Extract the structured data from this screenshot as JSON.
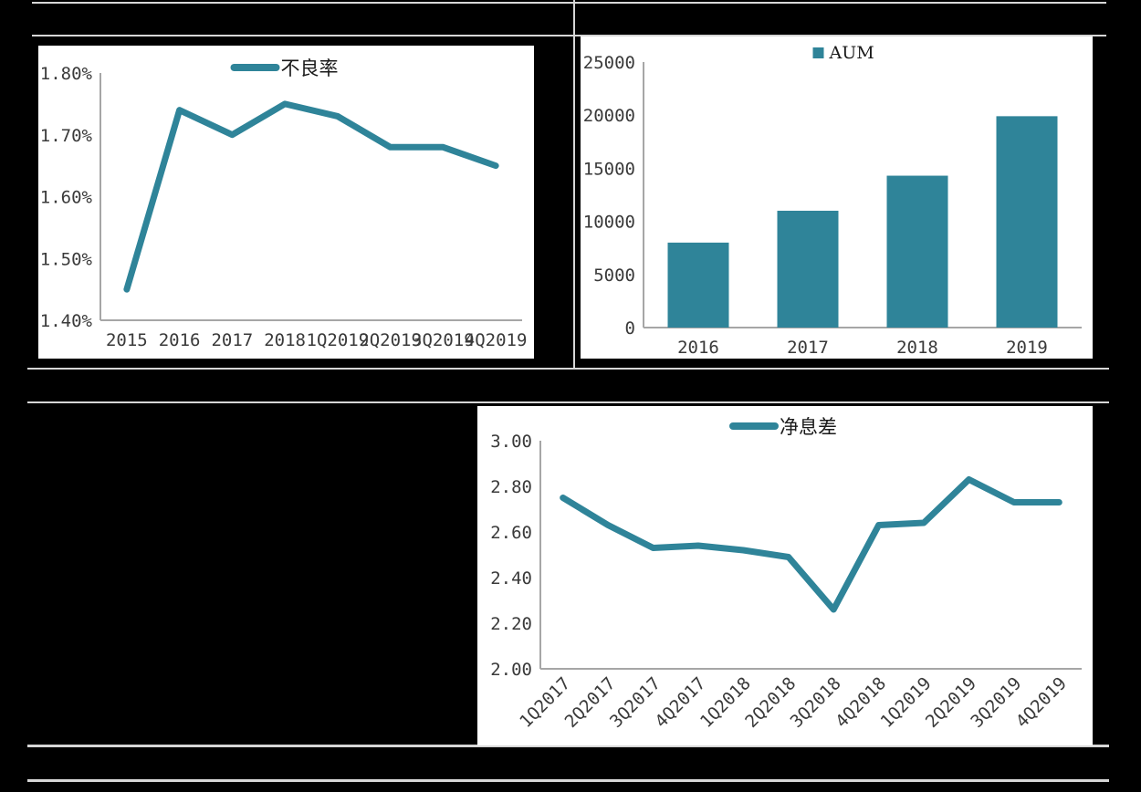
{
  "colors": {
    "accent": "#2F8499",
    "background": "#000000",
    "panel": "#FFFFFF",
    "rule": "#D6D6D6",
    "axis": "#A6A6A6",
    "text": "#3A3A3A",
    "legend_text": "#1A1A1A"
  },
  "chart_data": [
    {
      "id": "npl",
      "type": "line",
      "title": "",
      "legend": "不良率",
      "legend_position": "top",
      "grid": false,
      "categories": [
        "2015",
        "2016",
        "2017",
        "2018",
        "1Q2019",
        "2Q2019",
        "3Q2019",
        "4Q2019"
      ],
      "series": [
        {
          "name": "不良率",
          "values": [
            1.45,
            1.74,
            1.7,
            1.75,
            1.73,
            1.68,
            1.68,
            1.65
          ]
        }
      ],
      "ylim": [
        1.4,
        1.8
      ],
      "yticks": [
        "1.40%",
        "1.50%",
        "1.60%",
        "1.70%",
        "1.80%"
      ],
      "xlabel_rotation": 0
    },
    {
      "id": "aum",
      "type": "bar",
      "title": "",
      "legend": "AUM",
      "legend_position": "top",
      "grid": false,
      "categories": [
        "2016",
        "2017",
        "2018",
        "2019"
      ],
      "series": [
        {
          "name": "AUM",
          "values": [
            8000,
            11000,
            14300,
            19900
          ]
        }
      ],
      "ylim": [
        0,
        25000
      ],
      "yticks": [
        "0",
        "5000",
        "10000",
        "15000",
        "20000",
        "25000"
      ],
      "xlabel_rotation": 0
    },
    {
      "id": "nim",
      "type": "line",
      "title": "",
      "legend": "净息差",
      "legend_position": "top",
      "grid": false,
      "categories": [
        "1Q2017",
        "2Q2017",
        "3Q2017",
        "4Q2017",
        "1Q2018",
        "2Q2018",
        "3Q2018",
        "4Q2018",
        "1Q2019",
        "2Q2019",
        "3Q2019",
        "4Q2019"
      ],
      "series": [
        {
          "name": "净息差",
          "values": [
            2.75,
            2.63,
            2.53,
            2.54,
            2.52,
            2.49,
            2.26,
            2.63,
            2.64,
            2.83,
            2.73,
            2.73
          ]
        }
      ],
      "ylim": [
        2.0,
        3.0
      ],
      "yticks": [
        "2.00",
        "2.20",
        "2.40",
        "2.60",
        "2.80",
        "3.00"
      ],
      "xlabel_rotation": -45
    }
  ]
}
